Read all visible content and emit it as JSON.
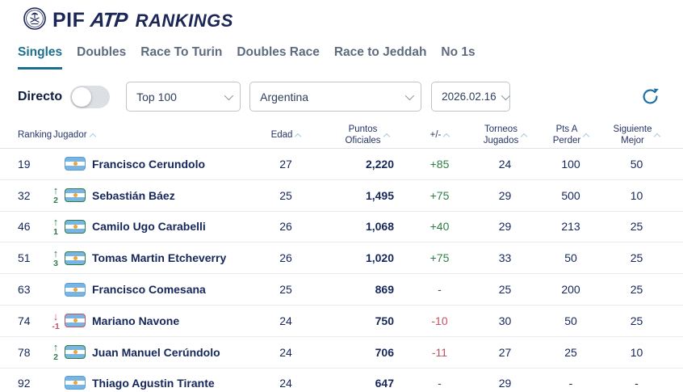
{
  "header": {
    "logo": {
      "pif": "PIF",
      "atp": "ATP",
      "rankings": "RANKINGS"
    },
    "tabs": [
      {
        "label": "Singles",
        "active": true
      },
      {
        "label": "Doubles",
        "active": false
      },
      {
        "label": "Race To Turin",
        "active": false
      },
      {
        "label": "Doubles Race",
        "active": false
      },
      {
        "label": "Race to Jeddah",
        "active": false
      },
      {
        "label": "No 1s",
        "active": false
      }
    ]
  },
  "filters": {
    "direct_label": "Directo",
    "direct_on": false,
    "top_select": "Top 100",
    "country_select": "Argentina",
    "date_select": "2026.02.16"
  },
  "table": {
    "headers": {
      "ranking": "Ranking",
      "jugador": "Jugador",
      "edad": "Edad",
      "puntos": "Puntos\nOficiales",
      "delta": "+/-",
      "torneos": "Torneos\nJugados",
      "pts_a_perder": "Pts A\nPerder",
      "siguiente_mejor": "Siguiente\nMejor"
    },
    "rows": [
      {
        "ranking": "19",
        "move": {
          "dir": "none",
          "value": ""
        },
        "player": "Francisco Cerundolo",
        "edad": "27",
        "puntos": "2,220",
        "delta": "+85",
        "delta_color": "green",
        "torneos": "24",
        "pts_a_perder": "100",
        "siguiente_mejor": "50"
      },
      {
        "ranking": "32",
        "move": {
          "dir": "up",
          "value": "2"
        },
        "player": "Sebastián Báez",
        "edad": "25",
        "puntos": "1,495",
        "delta": "+75",
        "delta_color": "green",
        "torneos": "29",
        "pts_a_perder": "500",
        "siguiente_mejor": "10"
      },
      {
        "ranking": "46",
        "move": {
          "dir": "up",
          "value": "1"
        },
        "player": "Camilo Ugo Carabelli",
        "edad": "26",
        "puntos": "1,068",
        "delta": "+40",
        "delta_color": "green",
        "torneos": "29",
        "pts_a_perder": "213",
        "siguiente_mejor": "25"
      },
      {
        "ranking": "51",
        "move": {
          "dir": "up",
          "value": "3"
        },
        "player": "Tomas Martin Etcheverry",
        "edad": "26",
        "puntos": "1,020",
        "delta": "+75",
        "delta_color": "green",
        "torneos": "33",
        "pts_a_perder": "50",
        "siguiente_mejor": "25"
      },
      {
        "ranking": "63",
        "move": {
          "dir": "none",
          "value": ""
        },
        "player": "Francisco Comesana",
        "edad": "25",
        "puntos": "869",
        "delta": "-",
        "delta_color": "neutral",
        "torneos": "25",
        "pts_a_perder": "200",
        "siguiente_mejor": "25"
      },
      {
        "ranking": "74",
        "move": {
          "dir": "down",
          "value": "-1"
        },
        "player": "Mariano Navone",
        "edad": "24",
        "puntos": "750",
        "delta": "-10",
        "delta_color": "red",
        "torneos": "30",
        "pts_a_perder": "50",
        "siguiente_mejor": "25"
      },
      {
        "ranking": "78",
        "move": {
          "dir": "up",
          "value": "2"
        },
        "player": "Juan Manuel Cerúndolo",
        "edad": "24",
        "puntos": "706",
        "delta": "-11",
        "delta_color": "red",
        "torneos": "27",
        "pts_a_perder": "25",
        "siguiente_mejor": "10"
      },
      {
        "ranking": "92",
        "move": {
          "dir": "none",
          "value": ""
        },
        "player": "Thiago Agustin Tirante",
        "edad": "24",
        "puntos": "647",
        "delta": "-",
        "delta_color": "neutral",
        "torneos": "29",
        "pts_a_perder": "-",
        "siguiente_mejor": "-"
      }
    ]
  },
  "colors": {
    "navy": "#15265a",
    "green": "#2e7d46",
    "red": "#c35164",
    "accent_teal": "#1d6f8f",
    "flag_blue": "#79b5e2",
    "refresh_blue": "#1d6fa5"
  }
}
